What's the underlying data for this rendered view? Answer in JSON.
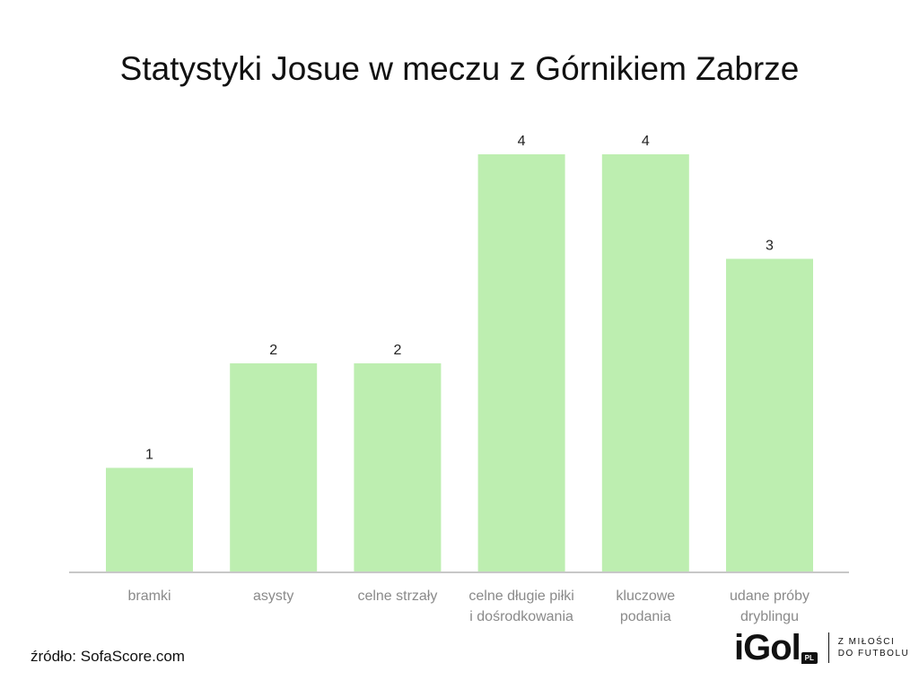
{
  "chart_data": {
    "type": "bar",
    "title": "Statystyki Josue w meczu z Górnikiem Zabrze",
    "xlabel": "",
    "ylabel": "",
    "categories": [
      [
        "bramki"
      ],
      [
        "asysty"
      ],
      [
        "celne strzały"
      ],
      [
        "celne długie piłki",
        "i dośrodkowania"
      ],
      [
        "kluczowe",
        "podania"
      ],
      [
        "udane próby",
        "dryblingu"
      ]
    ],
    "values": [
      1,
      2,
      2,
      4,
      4,
      3
    ],
    "ylim": [
      0,
      4
    ],
    "grid": false,
    "legend": "none",
    "bar_color": "#bdeeb0"
  },
  "source": "źródło: SofaScore.com",
  "logo": {
    "word": "iGol",
    "badge": "PL",
    "tagline_line1": "Z MIŁOŚCI",
    "tagline_line2": "DO FUTBOLU"
  }
}
